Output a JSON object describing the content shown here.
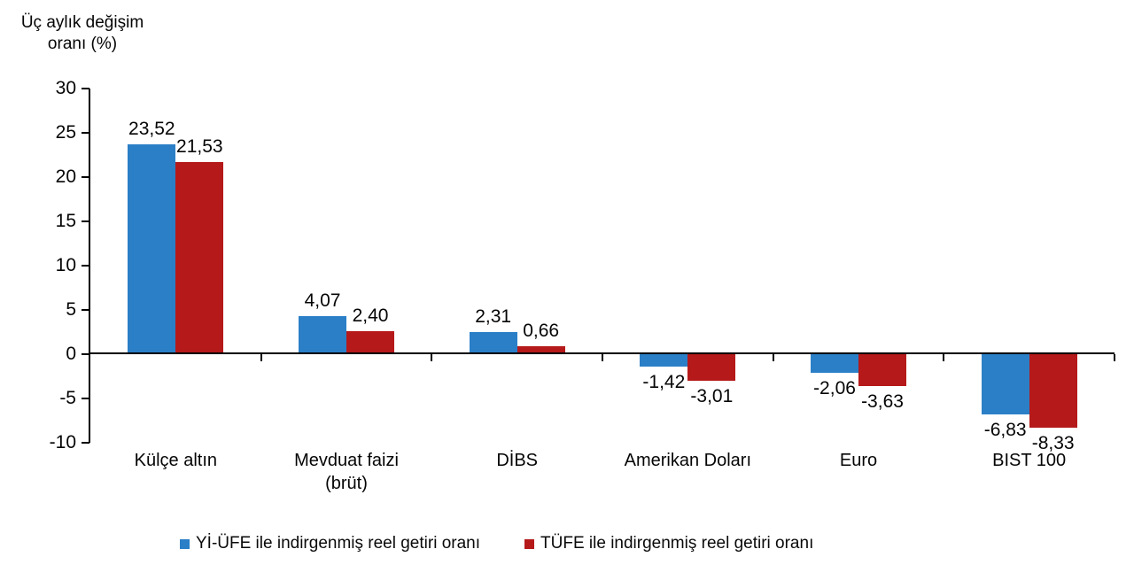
{
  "title": {
    "text": "Üç aylık değişim\noranı (%)"
  },
  "chart_data": {
    "type": "bar",
    "title": "Üç aylık değişim oranı (%)",
    "xlabel": "",
    "ylabel": "Üç aylık değişim oranı (%)",
    "ylim": [
      -10,
      30
    ],
    "ytick_step": 5,
    "grid": false,
    "legend_position": "bottom",
    "decimal_separator": ",",
    "categories": [
      "Külçe altın",
      "Mevduat faizi\n(brüt)",
      "DİBS",
      "Amerikan Doları",
      "Euro",
      "BIST 100"
    ],
    "series": [
      {
        "name": "Yİ-ÜFE ile indirgenmiş reel getiri oranı",
        "color": "#2b7fc7",
        "values": [
          23.52,
          4.07,
          2.31,
          -1.42,
          -2.06,
          -6.83
        ],
        "labels": [
          "23,52",
          "4,07",
          "2,31",
          "-1,42",
          "-2,06",
          "-6,83"
        ]
      },
      {
        "name": "TÜFE ile indirgenmiş reel getiri oranı",
        "color": "#b5191a",
        "values": [
          21.53,
          2.4,
          0.66,
          -3.01,
          -3.63,
          -8.33
        ],
        "labels": [
          "21,53",
          "2,40",
          "0,66",
          "-3,01",
          "-3,63",
          "-8,33"
        ]
      }
    ],
    "axis_color": "#000000"
  }
}
